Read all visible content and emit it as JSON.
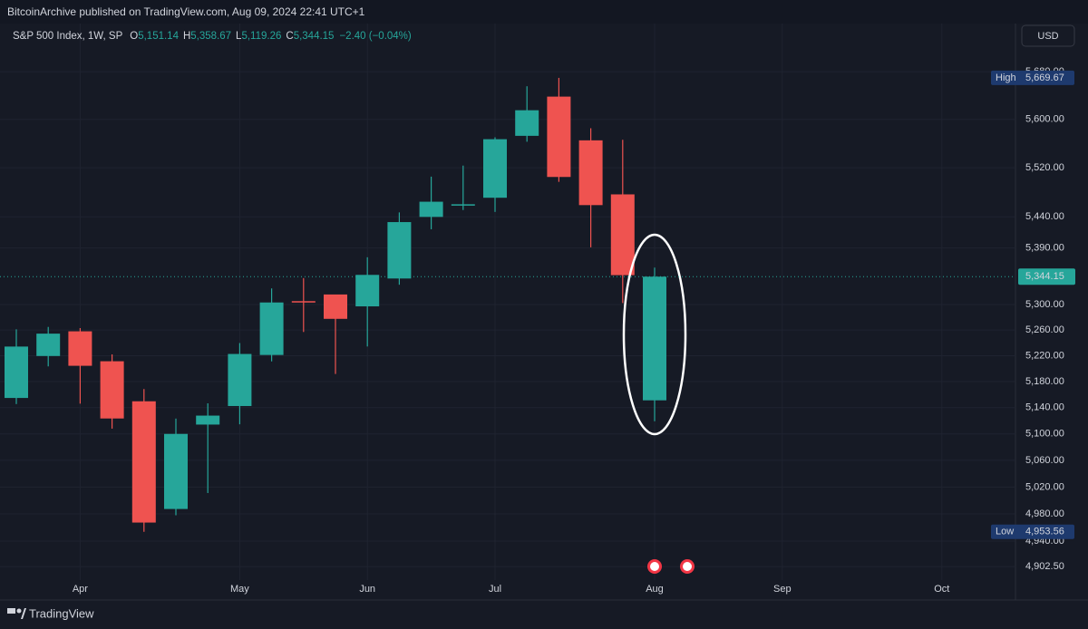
{
  "header": {
    "publisher": "BitcoinArchive published on TradingView.com, Aug 09, 2024 22:41 UTC+1",
    "brand": "TradingView"
  },
  "chart_data": {
    "type": "candlestick",
    "symbol": "S&P 500 Index, 1W, SP",
    "ohlc_legend": [
      {
        "key": "O",
        "value": "5,151.14"
      },
      {
        "key": "H",
        "value": "5,358.67"
      },
      {
        "key": "L",
        "value": "5,119.26"
      },
      {
        "key": "C",
        "value": "5,344.15"
      }
    ],
    "change": "−2.40 (−0.04%)",
    "currency": "USD",
    "categories": [
      null,
      null,
      "Apr",
      null,
      null,
      null,
      null,
      "May",
      null,
      null,
      null,
      "Jun",
      null,
      null,
      null,
      "Jul",
      null,
      null,
      null,
      null,
      "Aug",
      null,
      null,
      null,
      "Sep",
      null,
      null,
      null,
      null,
      "Oct",
      null,
      null
    ],
    "open": [
      5154.77,
      5219.5,
      5257.97,
      5211.37,
      5149.67,
      4987.33,
      5114.13,
      5142.42,
      5221.1,
      5305.35,
      5315.91,
      5297.15,
      5341.22,
      5440.0,
      5459.58,
      5471.08,
      5572.75,
      5638.16,
      5565.3,
      5476.55,
      5151.14,
      null,
      null,
      null,
      null,
      null,
      null,
      null,
      null,
      null,
      null,
      null
    ],
    "high": [
      5261.1,
      5264.85,
      5263.0,
      5222.0,
      5168.4,
      5123.28,
      5146.55,
      5239.66,
      5325.49,
      5341.88,
      5315.0,
      5375.08,
      5447.25,
      5505.53,
      5523.64,
      5570.33,
      5655.56,
      5669.67,
      5585.34,
      5566.16,
      5358.67,
      null,
      null,
      null,
      null,
      null,
      null,
      null,
      null,
      null,
      null,
      null
    ],
    "low": [
      5145.42,
      5203.42,
      5146.06,
      5107.94,
      4953.56,
      4978.0,
      5011.05,
      5114.54,
      5211.16,
      5256.93,
      5191.68,
      5234.32,
      5331.33,
      5420.0,
      5451.12,
      5448.03,
      5563.0,
      5497.0,
      5390.95,
      5302.4,
      5119.26,
      null,
      null,
      null,
      null,
      null,
      null,
      null,
      null,
      null,
      null,
      null
    ],
    "close": [
      5234.18,
      5254.35,
      5204.34,
      5123.41,
      4967.23,
      5099.96,
      5127.79,
      5222.68,
      5303.27,
      5304.72,
      5277.51,
      5346.99,
      5431.6,
      5464.62,
      5460.48,
      5567.19,
      5615.35,
      5505.0,
      5459.1,
      5346.56,
      5344.15,
      null,
      null,
      null,
      null,
      null,
      null,
      null,
      null,
      null,
      null,
      null
    ],
    "up_color": "#26a69a",
    "down_color": "#ef5350",
    "log_scale": true,
    "grid": true,
    "ylim": [
      4883,
      5762
    ],
    "yticks": [
      {
        "value": 5680,
        "label": "5,680.00"
      },
      {
        "value": 5600,
        "label": "5,600.00"
      },
      {
        "value": 5520,
        "label": "5,520.00"
      },
      {
        "value": 5440,
        "label": "5,440.00"
      },
      {
        "value": 5390,
        "label": "5,390.00"
      },
      {
        "value": 5300,
        "label": "5,300.00"
      },
      {
        "value": 5260,
        "label": "5,260.00"
      },
      {
        "value": 5220,
        "label": "5,220.00"
      },
      {
        "value": 5180,
        "label": "5,180.00"
      },
      {
        "value": 5140,
        "label": "5,140.00"
      },
      {
        "value": 5100,
        "label": "5,100.00"
      },
      {
        "value": 5060,
        "label": "5,060.00"
      },
      {
        "value": 5020,
        "label": "5,020.00"
      },
      {
        "value": 4980,
        "label": "4,980.00"
      },
      {
        "value": 4940,
        "label": "4,940.00"
      },
      {
        "value": 4902.5,
        "label": "4,902.50"
      }
    ],
    "price_labels": [
      {
        "name": "High",
        "value": 5669.67,
        "label": "5,669.67"
      },
      {
        "name": "Low",
        "value": 4953.56,
        "label": "4,953.56"
      }
    ],
    "last_price": {
      "value": 5344.15,
      "label": "5,344.15"
    }
  }
}
